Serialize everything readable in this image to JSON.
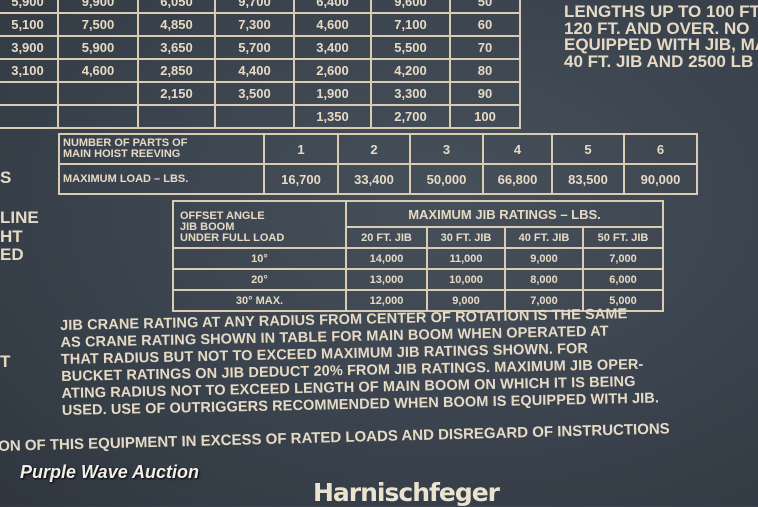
{
  "load_table": {
    "rows": [
      [
        "5,900",
        "9,900",
        "6,050",
        "9,700",
        "6,400",
        "9,600",
        "50"
      ],
      [
        "5,100",
        "7,500",
        "4,850",
        "7,300",
        "4,600",
        "7,100",
        "60"
      ],
      [
        "3,900",
        "5,900",
        "3,650",
        "5,700",
        "3,400",
        "5,500",
        "70"
      ],
      [
        "3,100",
        "4,600",
        "2,850",
        "4,400",
        "2,600",
        "4,200",
        "80"
      ],
      [
        "",
        "",
        "2,150",
        "3,500",
        "1,900",
        "3,300",
        "90"
      ],
      [
        "",
        "",
        "",
        "",
        "1,350",
        "2,700",
        "100"
      ]
    ]
  },
  "side_notes": [
    "LENGTHS UP TO 100 FT",
    "120 FT. AND OVER. NO",
    "EQUIPPED WITH JIB, MA",
    "40 FT. JIB AND 2500 LB"
  ],
  "left_fragments": [
    "S",
    "LINE",
    "HT",
    "ED",
    "T"
  ],
  "reeving_table": {
    "parts_label_1": "NUMBER OF PARTS OF",
    "parts_label_2": "MAIN HOIST REEVING",
    "load_label": "MAXIMUM LOAD – LBS.",
    "parts": [
      "1",
      "2",
      "3",
      "4",
      "5",
      "6"
    ],
    "loads": [
      "16,700",
      "33,400",
      "50,000",
      "66,800",
      "83,500",
      "90,000"
    ]
  },
  "jib_table": {
    "label_1": "OFFSET ANGLE",
    "label_2": "JIB BOOM",
    "label_3": "UNDER FULL LOAD",
    "title": "MAXIMUM JIB RATINGS – LBS.",
    "columns": [
      "20 FT. JIB",
      "30 FT. JIB",
      "40 FT. JIB",
      "50 FT. JIB"
    ],
    "rows": [
      {
        "angle": "10°",
        "values": [
          "14,000",
          "11,000",
          "9,000",
          "7,000"
        ]
      },
      {
        "angle": "20°",
        "values": [
          "13,000",
          "10,000",
          "8,000",
          "6,000"
        ]
      },
      {
        "angle": "30° MAX.",
        "values": [
          "12,000",
          "9,000",
          "7,000",
          "5,000"
        ]
      }
    ]
  },
  "paragraph": [
    "JIB CRANE RATING AT ANY RADIUS FROM CENTER OF ROTATION IS THE SAME",
    "AS CRANE RATING SHOWN IN TABLE FOR MAIN BOOM WHEN OPERATED AT",
    "THAT RADIUS BUT NOT TO EXCEED MAXIMUM JIB RATINGS SHOWN. FOR",
    "BUCKET RATINGS ON JIB DEDUCT 20% FROM JIB RATINGS. MAXIMUM JIB OPER-",
    "ATING RADIUS NOT TO EXCEED LENGTH OF MAIN BOOM ON WHICH IT IS BEING",
    "USED. USE OF OUTRIGGERS RECOMMENDED WHEN BOOM IS EQUIPPED WITH JIB."
  ],
  "warning": "ON OF THIS EQUIPMENT IN EXCESS OF RATED LOADS AND DISREGARD OF INSTRUCTIONS",
  "watermark": "Purple Wave Auction",
  "logo": "Harnischfeger"
}
